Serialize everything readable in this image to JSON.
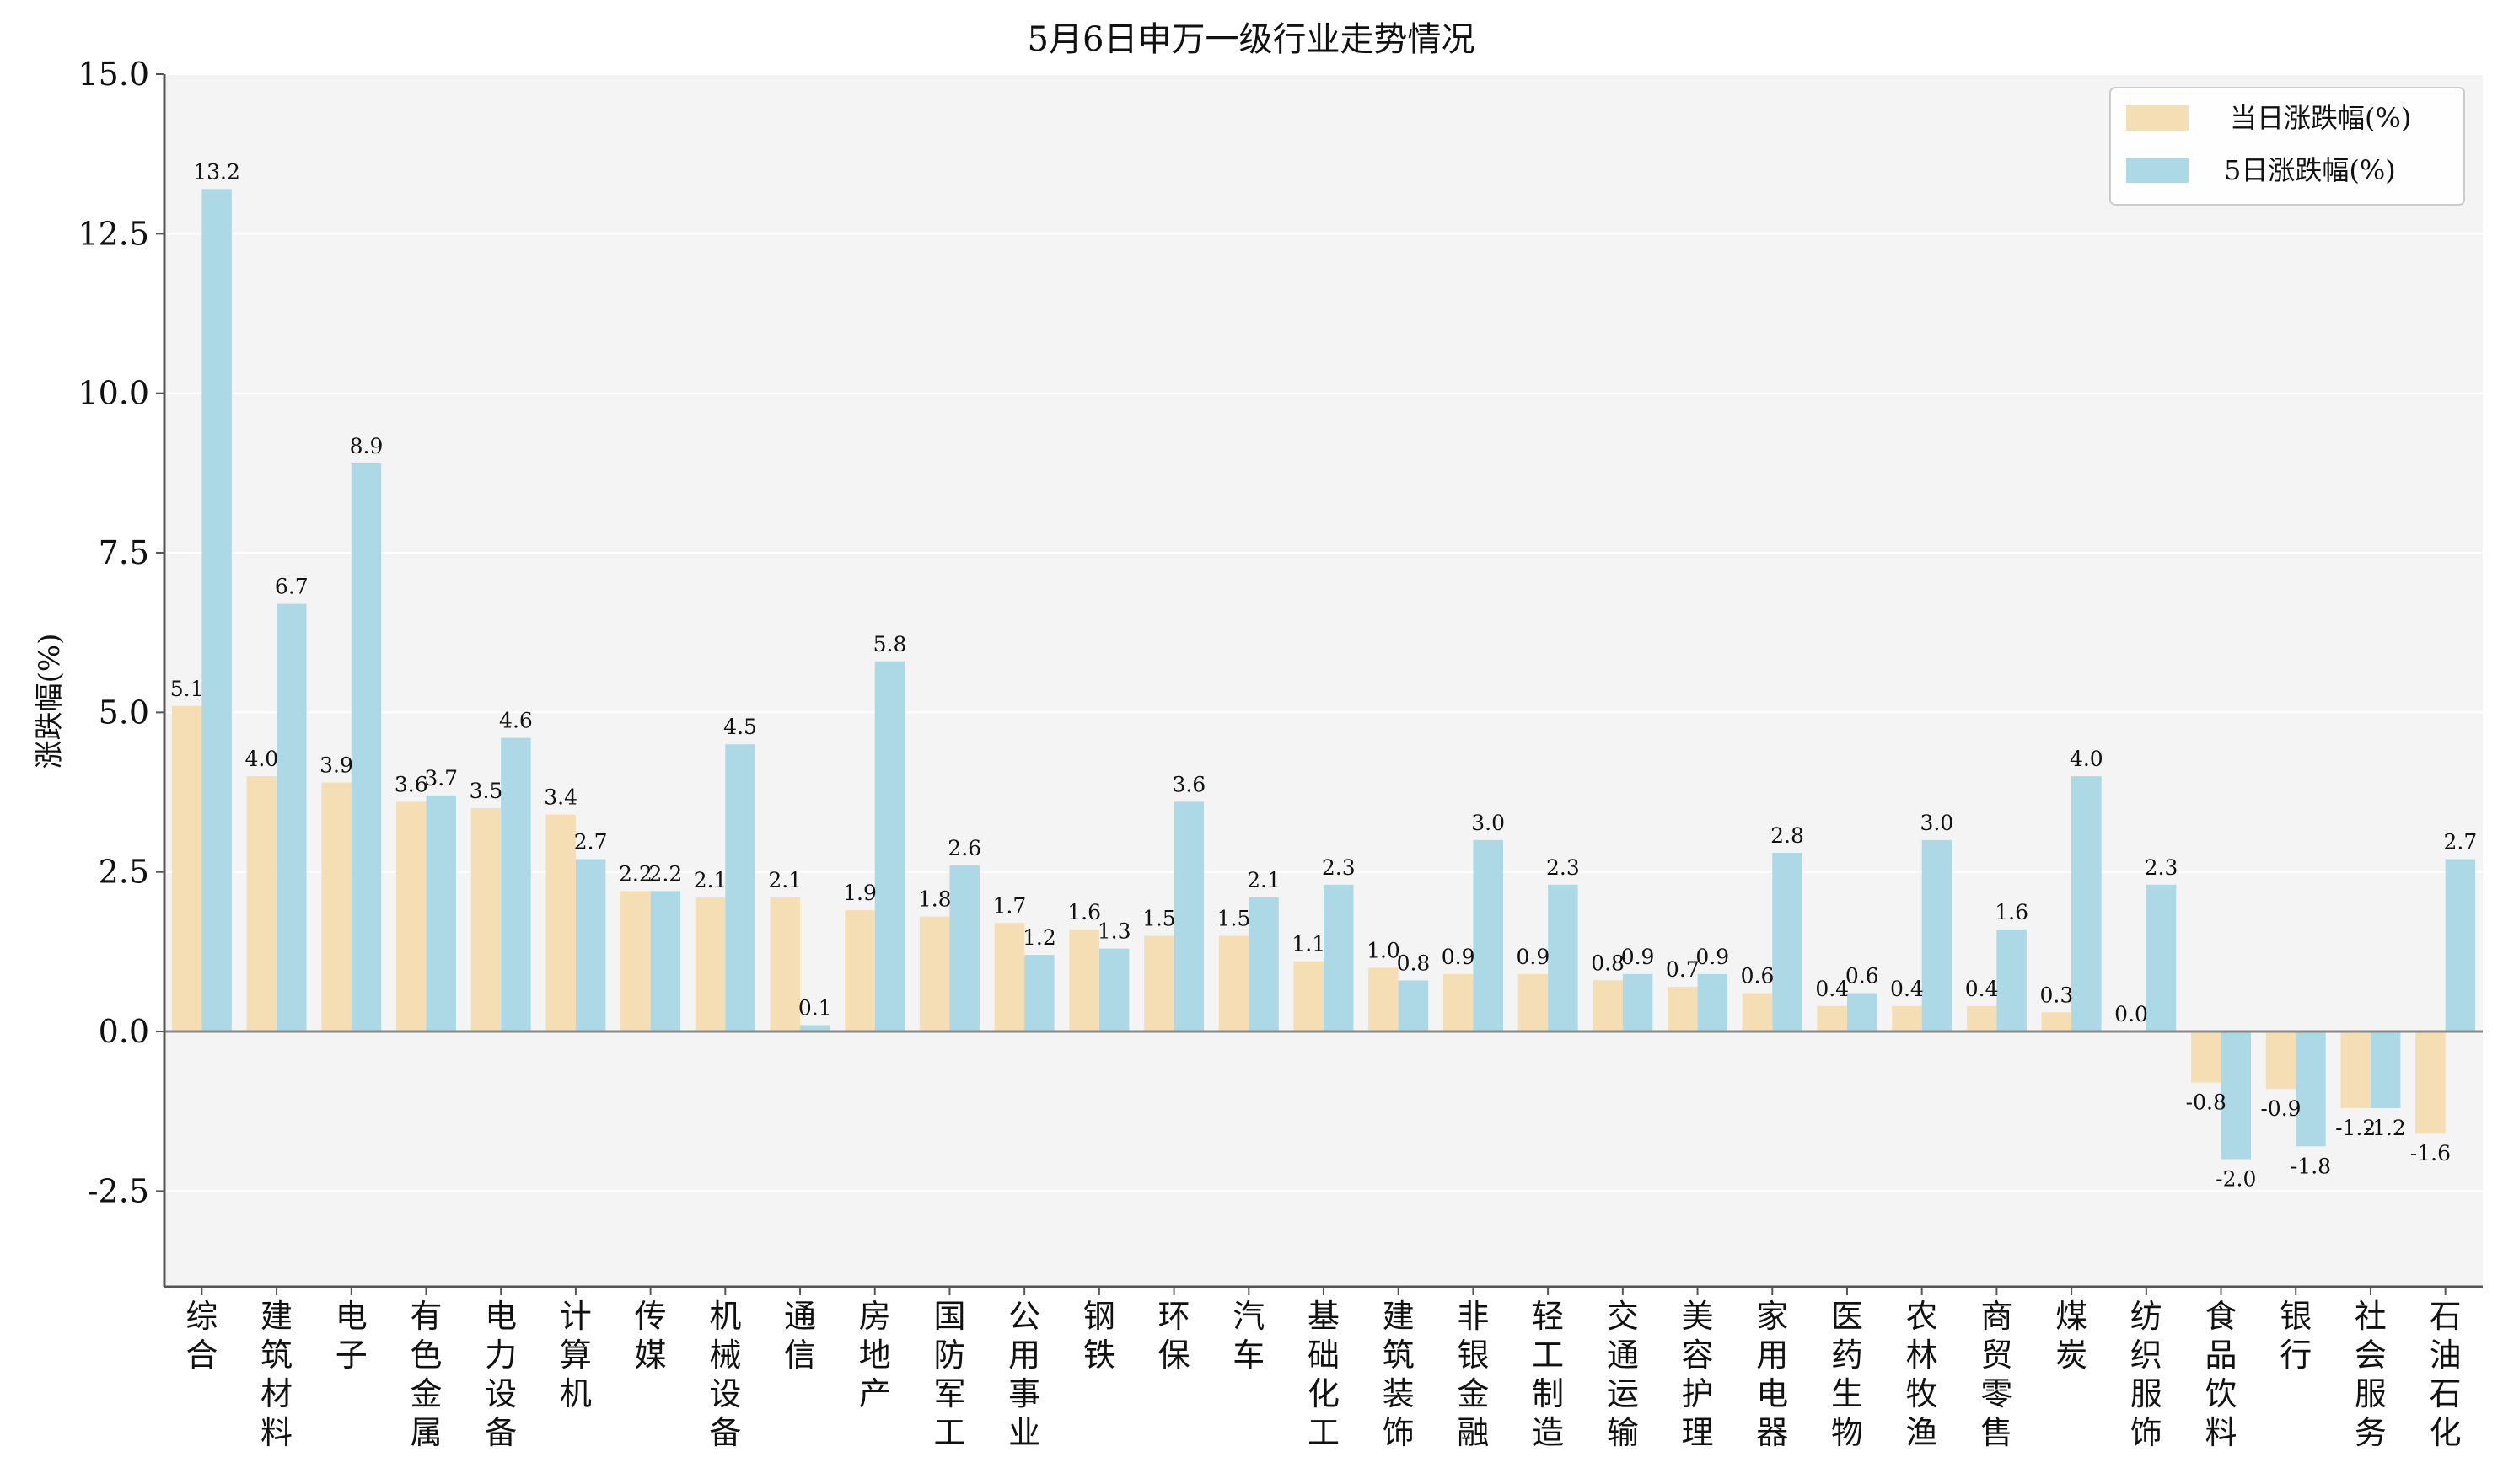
{
  "chart_data": {
    "type": "bar",
    "title": "5月6日申万一级行业走势情况",
    "xlabel": "",
    "ylabel": "涨跌幅(%)",
    "ylim": [
      -4.0,
      15.0
    ],
    "yticks": [
      -2.5,
      0.0,
      2.5,
      5.0,
      7.5,
      10.0,
      12.5,
      15.0
    ],
    "ytick_labels": [
      "-2.5",
      "0.0",
      "2.5",
      "5.0",
      "7.5",
      "10.0",
      "12.5",
      "15.0"
    ],
    "grid": "horizontal",
    "legend_position": "top-right",
    "categories": [
      "综合",
      "建筑材料",
      "电子",
      "有色金属",
      "电力设备",
      "计算机",
      "传媒",
      "机械设备",
      "通信",
      "房地产",
      "国防军工",
      "公用事业",
      "钢铁",
      "环保",
      "汽车",
      "基础化工",
      "建筑装饰",
      "非银金融",
      "轻工制造",
      "交通运输",
      "美容护理",
      "家用电器",
      "医药生物",
      "农林牧渔",
      "商贸零售",
      "煤炭",
      "纺织服饰",
      "食品饮料",
      "银行",
      "社会服务",
      "石油石化"
    ],
    "series": [
      {
        "name": "当日涨跌幅(%)",
        "color": "#f5deb3",
        "values": [
          5.1,
          4.0,
          3.9,
          3.6,
          3.5,
          3.4,
          2.2,
          2.1,
          2.1,
          1.9,
          1.8,
          1.7,
          1.6,
          1.5,
          1.5,
          1.1,
          1.0,
          0.9,
          0.9,
          0.8,
          0.7,
          0.6,
          0.4,
          0.4,
          0.4,
          0.3,
          0.0,
          -0.8,
          -0.9,
          -1.2,
          -1.6
        ],
        "labels": [
          "5.1",
          "4.0",
          "3.9",
          "3.6",
          "3.5",
          "3.4",
          "2.2",
          "2.1",
          "2.1",
          "1.9",
          "1.8",
          "1.7",
          "1.6",
          "1.5",
          "1.5",
          "1.1",
          "1.0",
          "0.9",
          "0.9",
          "0.8",
          "0.7",
          "0.6",
          "0.4",
          "0.4",
          "0.4",
          "0.3",
          "0.0",
          "-0.8",
          "-0.9",
          "-1.2",
          "-1.6"
        ]
      },
      {
        "name": "5日涨跌幅(%)",
        "color": "#add8e6",
        "values": [
          13.2,
          6.7,
          8.9,
          3.7,
          4.6,
          2.7,
          2.2,
          4.5,
          0.1,
          5.8,
          2.6,
          1.2,
          1.3,
          3.6,
          2.1,
          2.3,
          0.8,
          3.0,
          2.3,
          0.9,
          0.9,
          2.8,
          0.6,
          3.0,
          1.6,
          4.0,
          2.3,
          -2.0,
          -1.8,
          -1.2,
          2.7
        ],
        "labels": [
          "13.2",
          "6.7",
          "8.9",
          "3.7",
          "4.6",
          "2.7",
          "2.2",
          "4.5",
          "0.1",
          "5.8",
          "2.6",
          "1.2",
          "1.3",
          "3.6",
          "2.1",
          "2.3",
          "0.8",
          "3.0",
          "2.3",
          "0.9",
          "0.9",
          "2.8",
          "0.6",
          "3.0",
          "1.6",
          "4.0",
          "2.3",
          "-2.0",
          "-1.8",
          "-1.2",
          "2.7"
        ]
      }
    ]
  },
  "colors": {
    "plot_background": "#f4f4f4",
    "grid": "#ffffff",
    "axis": "#555555",
    "zero_line": "#888888"
  }
}
